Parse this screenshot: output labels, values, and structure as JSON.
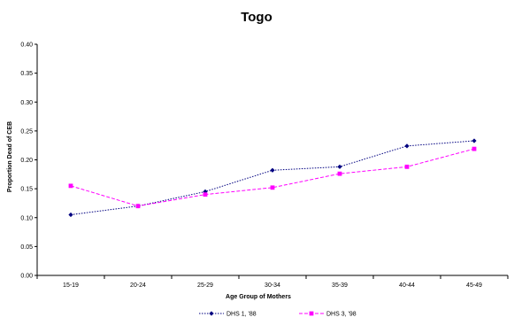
{
  "chart_data": {
    "type": "line",
    "title": "Togo",
    "xlabel": "Age Group of Mothers",
    "ylabel": "Proportion Dead of CEB",
    "categories": [
      "15-19",
      "20-24",
      "25-29",
      "30-34",
      "35-39",
      "40-44",
      "45-49"
    ],
    "ylim": [
      0,
      0.4
    ],
    "yticks": [
      "0.00",
      "0.05",
      "0.10",
      "0.15",
      "0.20",
      "0.25",
      "0.30",
      "0.35",
      "0.40"
    ],
    "grid": false,
    "legend_position": "bottom",
    "series": [
      {
        "name": "DHS 1, '88",
        "values": [
          0.105,
          0.12,
          0.145,
          0.182,
          0.188,
          0.224,
          0.233
        ],
        "color": "#000080",
        "marker": "diamond",
        "line_style": "dotted"
      },
      {
        "name": "DHS 3, '98",
        "values": [
          0.155,
          0.12,
          0.14,
          0.152,
          0.176,
          0.188,
          0.219
        ],
        "color": "#ff00ff",
        "marker": "square",
        "line_style": "dashed"
      }
    ]
  }
}
